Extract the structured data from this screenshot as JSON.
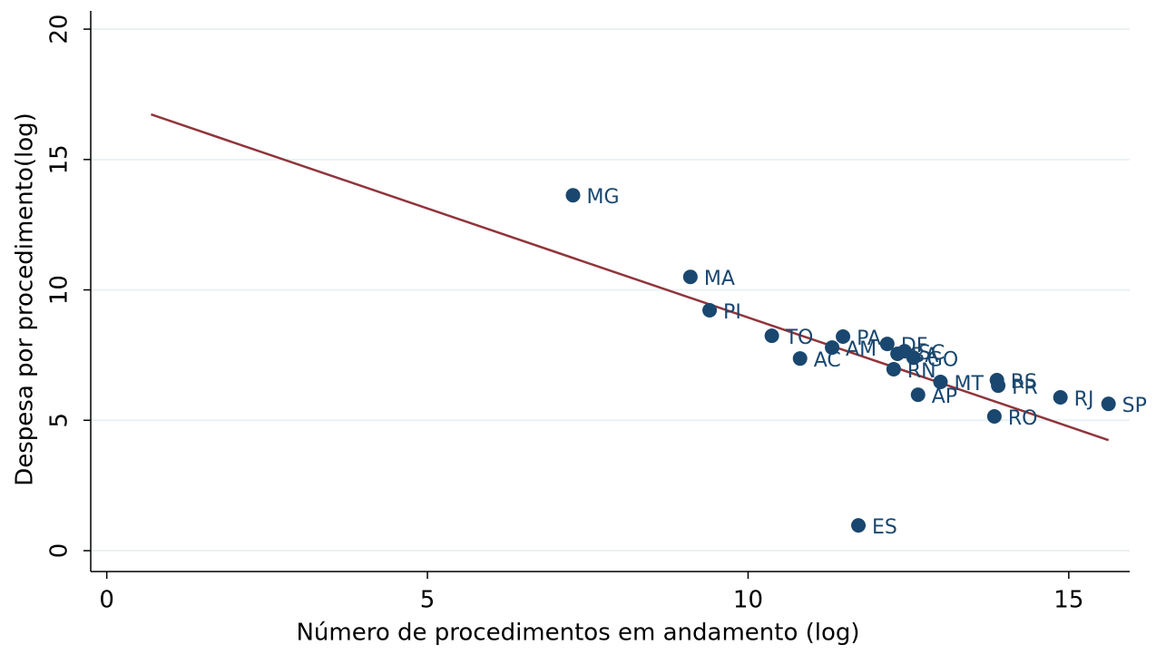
{
  "chart_data": {
    "type": "scatter",
    "xlabel": "Número de procedimentos em andamento (log)",
    "ylabel": "Despesa por procedimento(log)",
    "point_labels": [
      "MG",
      "MA",
      "PI",
      "TO",
      "AC",
      "AM",
      "PA",
      "DF",
      "BA",
      "SC",
      "GO",
      "RN",
      "AP",
      "MT",
      "RS",
      "PR",
      "RJ",
      "SP",
      "RO",
      "ES"
    ],
    "x": [
      7.27,
      9.1,
      9.4,
      10.37,
      10.81,
      11.31,
      11.48,
      12.17,
      12.33,
      12.44,
      12.58,
      12.27,
      12.65,
      13.0,
      13.88,
      13.9,
      14.87,
      15.62,
      13.84,
      11.72
    ],
    "values": [
      13.63,
      10.5,
      9.22,
      8.24,
      7.37,
      7.79,
      8.21,
      7.93,
      7.55,
      7.65,
      7.4,
      6.96,
      5.98,
      6.47,
      6.54,
      6.33,
      5.88,
      5.63,
      5.15,
      0.97
    ],
    "color": "#1a476f",
    "fit": {
      "x": [
        0.69,
        15.62
      ],
      "values": [
        16.73,
        4.24
      ],
      "color": "#90353b"
    },
    "xlim": [
      -0.25,
      15.95
    ],
    "ylim": [
      -0.8,
      20.7
    ],
    "xticks": [
      0,
      5,
      10,
      15
    ],
    "yticks": [
      0,
      5,
      10,
      15,
      20
    ],
    "grid": true
  }
}
